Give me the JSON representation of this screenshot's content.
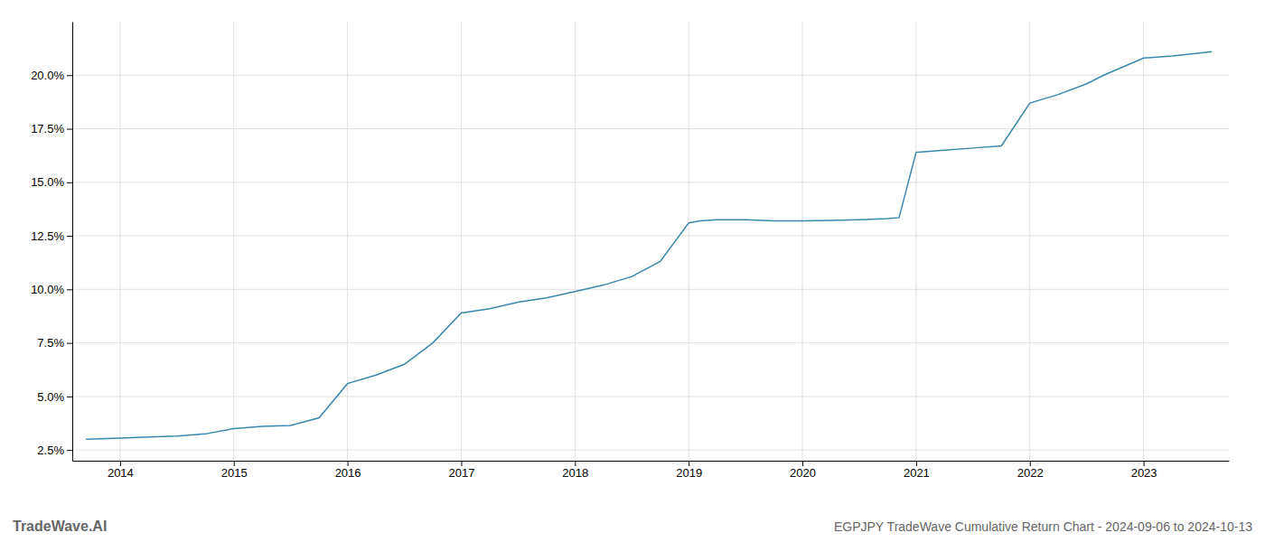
{
  "chart_data": {
    "type": "line",
    "title": "EGPJPY TradeWave Cumulative Return Chart - 2024-09-06 to 2024-10-13",
    "annotations": [
      {
        "text": "TradeWave.AI"
      }
    ],
    "x": [
      2013.7,
      2014.0,
      2014.2,
      2014.5,
      2014.75,
      2015.0,
      2015.25,
      2015.5,
      2015.75,
      2016.0,
      2016.25,
      2016.5,
      2016.75,
      2017.0,
      2017.25,
      2017.5,
      2017.75,
      2018.0,
      2018.25,
      2018.5,
      2018.75,
      2019.0,
      2019.1,
      2019.25,
      2019.5,
      2019.75,
      2020.0,
      2020.25,
      2020.5,
      2020.75,
      2020.85,
      2021.0,
      2021.25,
      2021.5,
      2021.75,
      2022.0,
      2022.25,
      2022.5,
      2022.65,
      2023.0,
      2023.25,
      2023.6
    ],
    "values": [
      3.0,
      3.05,
      3.1,
      3.15,
      3.25,
      3.5,
      3.6,
      3.65,
      4.0,
      5.6,
      6.0,
      6.5,
      7.5,
      8.9,
      9.1,
      9.4,
      9.6,
      9.9,
      10.2,
      10.6,
      11.3,
      13.1,
      13.2,
      13.25,
      13.25,
      13.2,
      13.2,
      13.22,
      13.25,
      13.3,
      13.35,
      16.4,
      16.5,
      16.6,
      16.7,
      18.7,
      19.1,
      19.6,
      20.0,
      20.8,
      20.9,
      21.1
    ],
    "color": "#3a87ad",
    "xlim": [
      2013.58,
      2023.75
    ],
    "ylim": [
      2.0,
      22.5
    ],
    "xticks": [
      2014,
      2015,
      2016,
      2017,
      2018,
      2019,
      2020,
      2021,
      2022,
      2023
    ],
    "yticks": [
      {
        "value": 2.5,
        "label": "2.5%"
      },
      {
        "value": 5.0,
        "label": "5.0%"
      },
      {
        "value": 7.5,
        "label": "7.5%"
      },
      {
        "value": 10.0,
        "label": "10.0%"
      },
      {
        "value": 12.5,
        "label": "12.5%"
      },
      {
        "value": 15.0,
        "label": "15.0%"
      },
      {
        "value": 17.5,
        "label": "17.5%"
      },
      {
        "value": 20.0,
        "label": "20.0%"
      }
    ],
    "grid": true
  }
}
